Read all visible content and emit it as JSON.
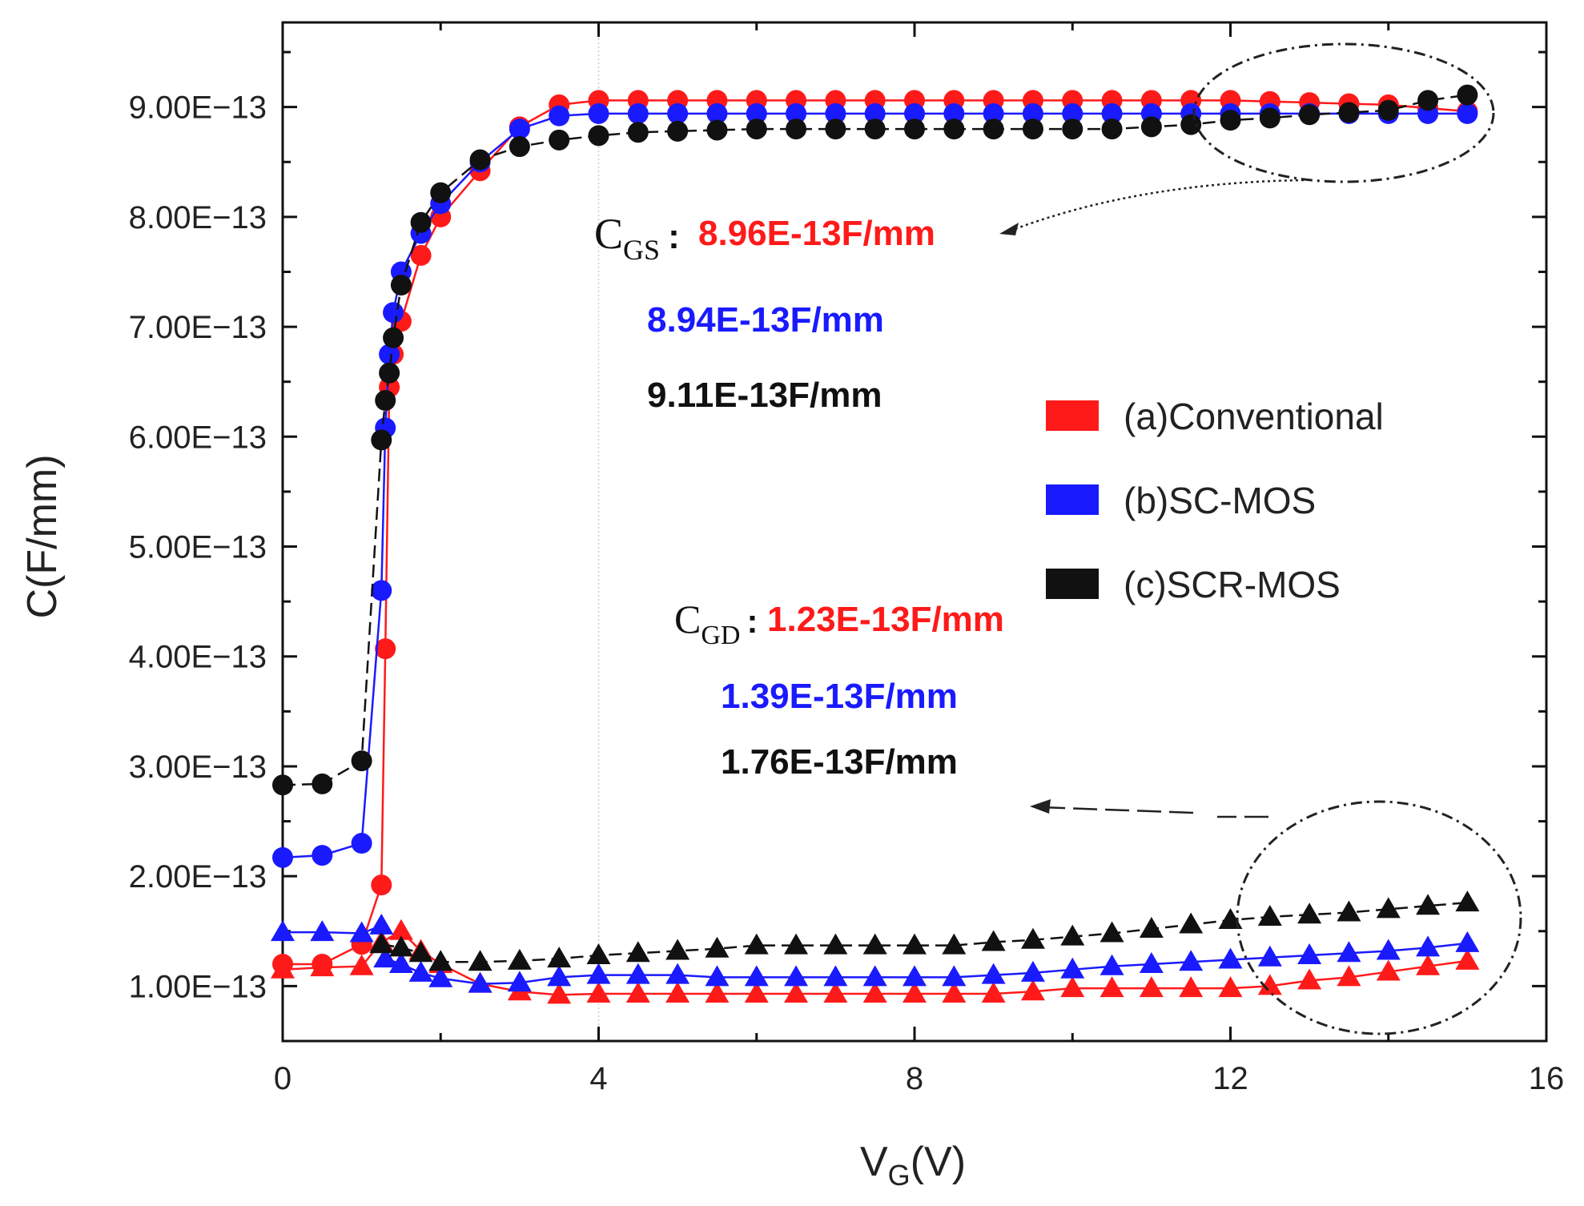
{
  "chart_data": {
    "type": "scatter",
    "xlabel": "V",
    "xlabel_sub": "G",
    "xlabel_unit": "(V)",
    "ylabel": "C(F/mm)",
    "xlim": [
      0,
      16
    ],
    "ylim": [
      5e-14,
      9.77e-13
    ],
    "xticks": [
      0,
      4,
      8,
      12,
      16
    ],
    "xtick_labels": [
      "0",
      "4",
      "8",
      "12",
      "16"
    ],
    "yticks": [
      1e-13,
      2e-13,
      3e-13,
      4e-13,
      5e-13,
      6e-13,
      7e-13,
      8e-13,
      9e-13
    ],
    "ytick_labels": [
      "1.00E−13",
      "2.00E−13",
      "3.00E−13",
      "4.00E−13",
      "5.00E−13",
      "6.00E−13",
      "7.00E−13",
      "8.00E−13",
      "9.00E−13"
    ],
    "y_unit_scale": 1e-13,
    "legend": {
      "placement": "center-right",
      "entries": [
        {
          "label": "(a)Conventional",
          "color": "#ff1a1a"
        },
        {
          "label": "(b)SC-MOS",
          "color": "#1a1aff"
        },
        {
          "label": "(c)SCR-MOS",
          "color": "#111111"
        }
      ]
    },
    "series": [
      {
        "name": "(a)Conventional CGS",
        "color": "#ff1a1a",
        "marker": "circle",
        "x": [
          0,
          0.5,
          1,
          1.25,
          1.3,
          1.35,
          1.4,
          1.5,
          1.75,
          2,
          2.5,
          3,
          3.5,
          4,
          4.5,
          5,
          5.5,
          6,
          6.5,
          7,
          7.5,
          8,
          8.5,
          9,
          9.5,
          10,
          10.5,
          11,
          11.5,
          12,
          12.5,
          13,
          13.5,
          14,
          14.5,
          15
        ],
        "y": [
          1.2,
          1.2,
          1.38,
          1.92,
          4.07,
          6.45,
          6.75,
          7.05,
          7.65,
          8.0,
          8.42,
          8.82,
          9.02,
          9.06,
          9.06,
          9.06,
          9.06,
          9.06,
          9.06,
          9.06,
          9.06,
          9.06,
          9.06,
          9.06,
          9.06,
          9.06,
          9.06,
          9.06,
          9.06,
          9.06,
          9.05,
          9.04,
          9.03,
          9.02,
          8.99,
          8.96
        ]
      },
      {
        "name": "(b)SC-MOS CGS",
        "color": "#1a1aff",
        "marker": "circle",
        "x": [
          0,
          0.5,
          1,
          1.25,
          1.3,
          1.35,
          1.4,
          1.5,
          1.75,
          2,
          2.5,
          3,
          3.5,
          4,
          4.5,
          5,
          5.5,
          6,
          6.5,
          7,
          7.5,
          8,
          8.5,
          9,
          9.5,
          10,
          10.5,
          11,
          11.5,
          12,
          12.5,
          13,
          13.5,
          14,
          14.5,
          15
        ],
        "y": [
          2.17,
          2.19,
          2.3,
          4.6,
          6.08,
          6.75,
          7.13,
          7.5,
          7.85,
          8.12,
          8.5,
          8.8,
          8.92,
          8.94,
          8.94,
          8.94,
          8.94,
          8.94,
          8.94,
          8.94,
          8.94,
          8.94,
          8.94,
          8.94,
          8.94,
          8.94,
          8.94,
          8.94,
          8.94,
          8.94,
          8.94,
          8.94,
          8.94,
          8.94,
          8.94,
          8.94
        ]
      },
      {
        "name": "(c)SCR-MOS CGS",
        "color": "#111111",
        "marker": "circle",
        "dashed": true,
        "x": [
          0,
          0.5,
          1,
          1.25,
          1.3,
          1.35,
          1.4,
          1.5,
          1.75,
          2,
          2.5,
          3,
          3.5,
          4,
          4.5,
          5,
          5.5,
          6,
          6.5,
          7,
          7.5,
          8,
          8.5,
          9,
          9.5,
          10,
          10.5,
          11,
          11.5,
          12,
          12.5,
          13,
          13.5,
          14,
          14.5,
          15
        ],
        "y": [
          2.83,
          2.84,
          3.05,
          5.97,
          6.33,
          6.58,
          6.9,
          7.38,
          7.95,
          8.22,
          8.52,
          8.64,
          8.7,
          8.74,
          8.77,
          8.78,
          8.79,
          8.8,
          8.8,
          8.8,
          8.8,
          8.8,
          8.8,
          8.8,
          8.8,
          8.8,
          8.8,
          8.82,
          8.84,
          8.88,
          8.9,
          8.93,
          8.95,
          8.97,
          9.06,
          9.11
        ]
      },
      {
        "name": "(a)Conventional CGD",
        "color": "#ff1a1a",
        "marker": "triangle",
        "x": [
          0,
          0.5,
          1,
          1.25,
          1.5,
          1.75,
          2,
          2.5,
          3,
          3.5,
          4,
          4.5,
          5,
          5.5,
          6,
          6.5,
          7,
          7.5,
          8,
          8.5,
          9,
          9.5,
          10,
          10.5,
          11,
          11.5,
          12,
          12.5,
          13,
          13.5,
          14,
          14.5,
          15
        ],
        "y": [
          1.15,
          1.17,
          1.18,
          1.4,
          1.5,
          1.32,
          1.2,
          1.02,
          0.95,
          0.92,
          0.93,
          0.93,
          0.93,
          0.93,
          0.93,
          0.93,
          0.93,
          0.93,
          0.93,
          0.93,
          0.93,
          0.95,
          0.98,
          0.98,
          0.98,
          0.98,
          0.98,
          1.0,
          1.05,
          1.08,
          1.13,
          1.18,
          1.23
        ]
      },
      {
        "name": "(b)SC-MOS CGD",
        "color": "#1a1aff",
        "marker": "triangle",
        "x": [
          0,
          0.5,
          1,
          1.25,
          1.3,
          1.5,
          1.75,
          2,
          2.5,
          3,
          3.5,
          4,
          4.5,
          5,
          5.5,
          6,
          6.5,
          7,
          7.5,
          8,
          8.5,
          9,
          9.5,
          10,
          10.5,
          11,
          11.5,
          12,
          12.5,
          13,
          13.5,
          14,
          14.5,
          15
        ],
        "y": [
          1.49,
          1.49,
          1.48,
          1.55,
          1.25,
          1.2,
          1.12,
          1.07,
          1.02,
          1.03,
          1.08,
          1.1,
          1.1,
          1.1,
          1.08,
          1.08,
          1.08,
          1.08,
          1.08,
          1.08,
          1.08,
          1.1,
          1.12,
          1.15,
          1.18,
          1.2,
          1.22,
          1.24,
          1.26,
          1.28,
          1.3,
          1.32,
          1.35,
          1.39
        ]
      },
      {
        "name": "(c)SCR-MOS CGD",
        "color": "#111111",
        "marker": "triangle",
        "dashed": true,
        "x": [
          1.25,
          1.5,
          1.75,
          2,
          2.5,
          3,
          3.5,
          4,
          4.5,
          5,
          5.5,
          6,
          6.5,
          7,
          7.5,
          8,
          8.5,
          9,
          9.5,
          10,
          10.5,
          11,
          11.5,
          12,
          12.5,
          13,
          13.5,
          14,
          14.5,
          15
        ],
        "y": [
          1.38,
          1.35,
          1.3,
          1.22,
          1.22,
          1.23,
          1.25,
          1.28,
          1.3,
          1.32,
          1.34,
          1.37,
          1.37,
          1.37,
          1.37,
          1.37,
          1.37,
          1.4,
          1.42,
          1.45,
          1.48,
          1.52,
          1.56,
          1.6,
          1.63,
          1.65,
          1.67,
          1.7,
          1.73,
          1.76
        ]
      }
    ],
    "annotations": {
      "cgs_symbol": "C",
      "cgs_sub": "GS",
      "colon": ":",
      "cgs_values": [
        "8.96E-13F/mm",
        "8.94E-13F/mm",
        "9.11E-13F/mm"
      ],
      "cgd_symbol": "C",
      "cgd_sub": "GD",
      "cgd_values": [
        "1.23E-13F/mm",
        "1.39E-13F/mm",
        "1.76E-13F/mm"
      ]
    }
  }
}
